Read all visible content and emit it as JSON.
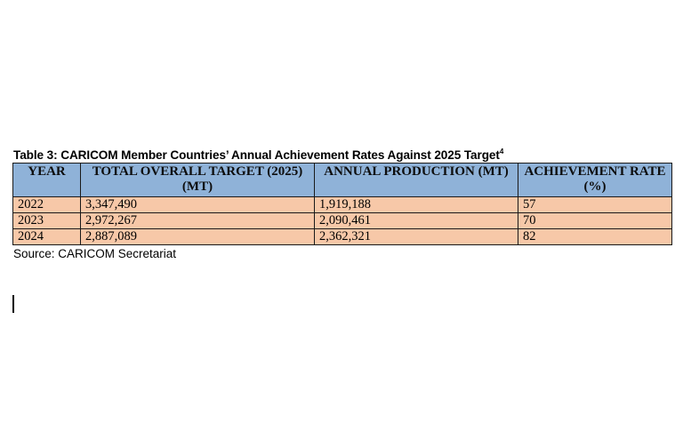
{
  "caption": {
    "text": "Table 3: CARICOM Member Countries’ Annual Achievement Rates Against 2025 Target",
    "footnote": "4"
  },
  "table": {
    "headers": [
      "YEAR",
      "TOTAL OVERALL TARGET (2025) (MT)",
      "ANNUAL PRODUCTION (MT)",
      "ACHIEVEMENT RATE (%)"
    ],
    "rows": [
      [
        "2022",
        "3,347,490",
        "1,919,188",
        "57"
      ],
      [
        "2023",
        "2,972,267",
        "2,090,461",
        "70"
      ],
      [
        "2024",
        "2,887,089",
        "2,362,321",
        "82"
      ]
    ]
  },
  "source": "Source: CARICOM Secretariat",
  "colors": {
    "header_bg": "#8fb2d8",
    "row_bg": "#f7c8a8"
  }
}
